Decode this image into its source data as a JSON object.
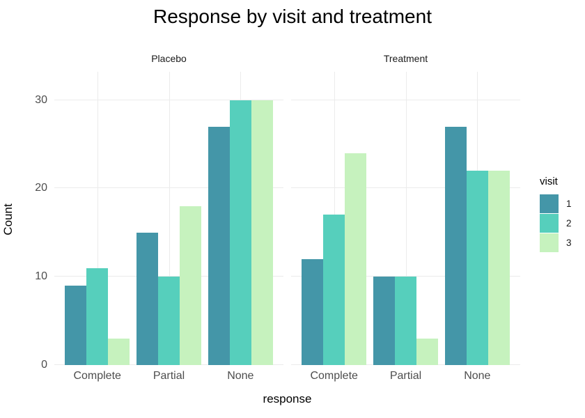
{
  "title": "Response by visit and treatment",
  "axes": {
    "x_title": "response",
    "y_title": "Count",
    "y_ticks": [
      0,
      10,
      20,
      30
    ],
    "x_categories": [
      "Complete",
      "Partial",
      "None"
    ]
  },
  "legend": {
    "title": "visit",
    "items": [
      {
        "label": "1",
        "color": "#4496a8"
      },
      {
        "label": "2",
        "color": "#56cfbc"
      },
      {
        "label": "3",
        "color": "#c6f2be"
      }
    ]
  },
  "style": {
    "grid_color": "#ebebeb",
    "axis_text_color": "#4d4d4d",
    "title_color": "#000000",
    "strip_text_color": "#1a1a1a",
    "background": "#ffffff"
  },
  "chart_data": {
    "type": "bar",
    "title": "Response by visit and treatment",
    "xlabel": "response",
    "ylabel": "Count",
    "ylim": [
      0,
      33.2
    ],
    "y_ticks": [
      0,
      10,
      20,
      30
    ],
    "grid": true,
    "bar_layout": "dodged",
    "legend_position": "right",
    "legend_title": "visit",
    "categories": [
      "Complete",
      "Partial",
      "None"
    ],
    "facets": [
      {
        "label": "Placebo",
        "series": [
          {
            "name": "1",
            "color": "#4496a8",
            "values": [
              9,
              15,
              27
            ]
          },
          {
            "name": "2",
            "color": "#56cfbc",
            "values": [
              11,
              10,
              30
            ]
          },
          {
            "name": "3",
            "color": "#c6f2be",
            "values": [
              3,
              18,
              30
            ]
          }
        ]
      },
      {
        "label": "Treatment",
        "series": [
          {
            "name": "1",
            "color": "#4496a8",
            "values": [
              12,
              10,
              27
            ]
          },
          {
            "name": "2",
            "color": "#56cfbc",
            "values": [
              17,
              10,
              22
            ]
          },
          {
            "name": "3",
            "color": "#c6f2be",
            "values": [
              24,
              3,
              22
            ]
          }
        ]
      }
    ]
  }
}
